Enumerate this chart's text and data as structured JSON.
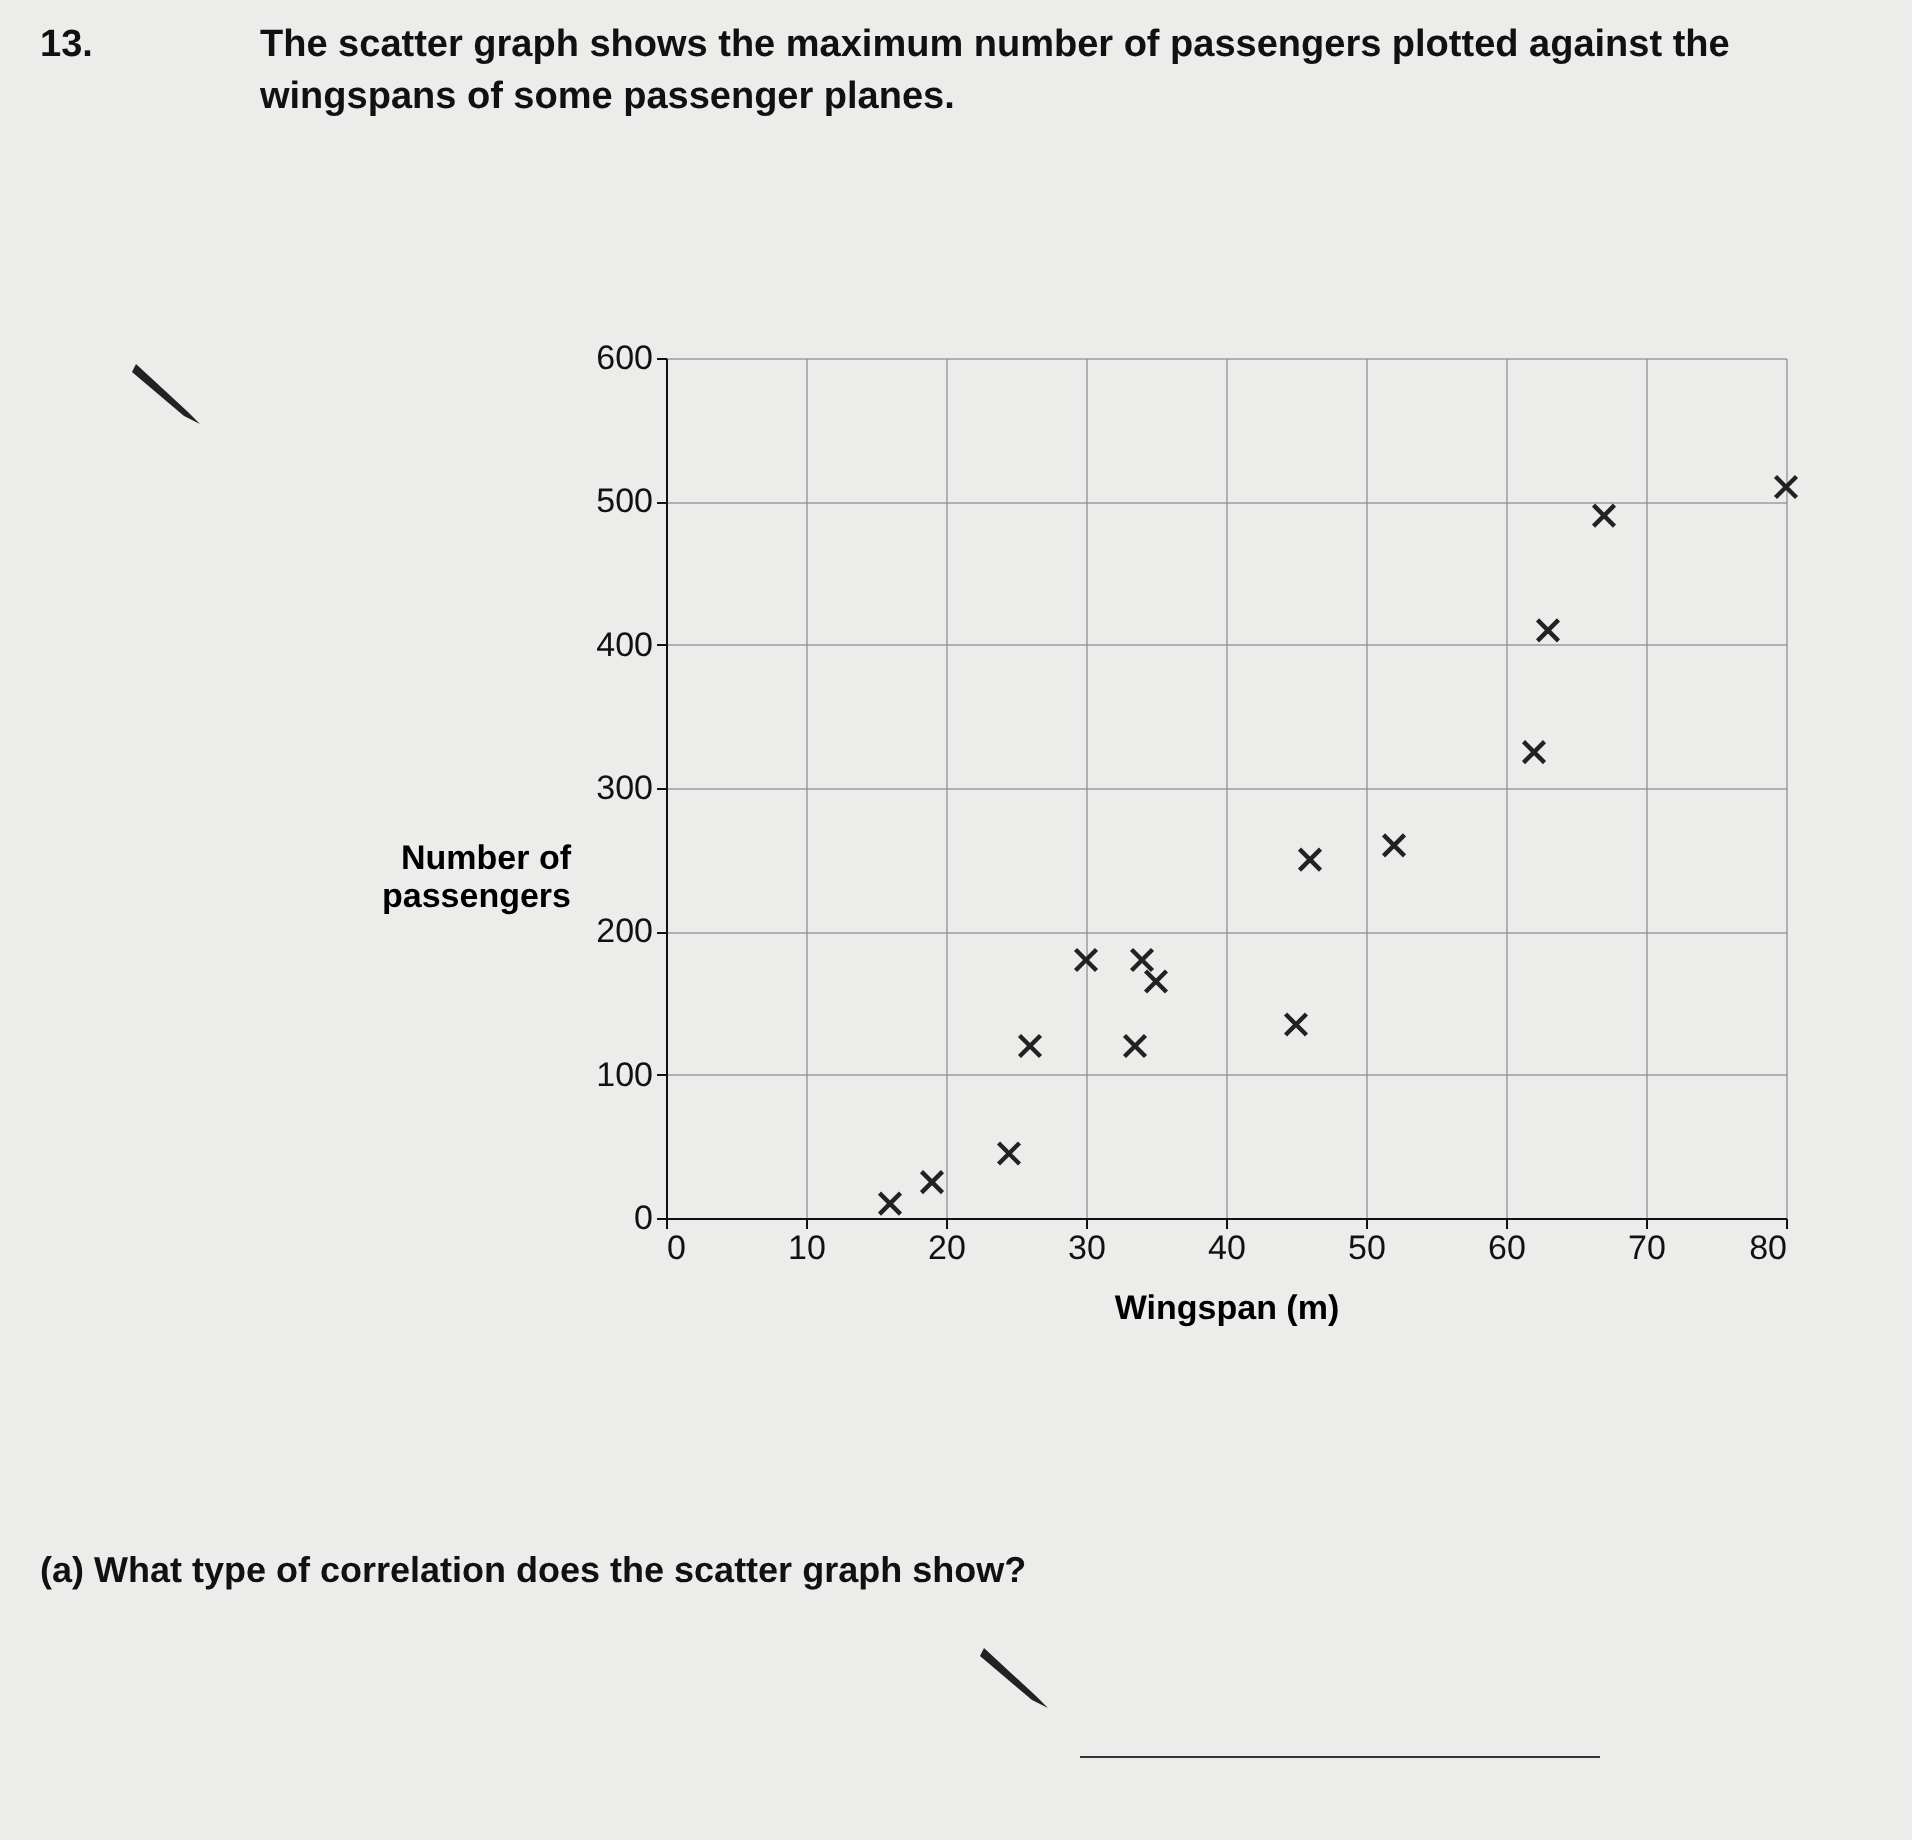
{
  "chart_data": {
    "type": "scatter",
    "title": "The scatter graph shows the maximum number of passengers plotted against the wingspans of some passenger planes.",
    "xlabel": "Wingspan (m)",
    "ylabel": "Number of passengers",
    "x": [
      16,
      19,
      24.5,
      26,
      30,
      33.5,
      34,
      35,
      45,
      46,
      52,
      62,
      63,
      67,
      80
    ],
    "values": [
      10,
      25,
      45,
      120,
      180,
      120,
      180,
      165,
      135,
      250,
      260,
      325,
      410,
      490,
      510
    ],
    "color": "#222222",
    "marker": "cross",
    "grid": true,
    "xlim": [
      0,
      80
    ],
    "xticks": [
      0,
      10,
      20,
      30,
      40,
      50,
      60,
      70,
      80
    ],
    "ylim": [
      0,
      600
    ],
    "yticks": [
      0,
      100,
      200,
      300,
      400,
      500,
      600
    ],
    "annotations": [
      "13.",
      "(a) What type of correlation does the scatter graph show?"
    ]
  }
}
